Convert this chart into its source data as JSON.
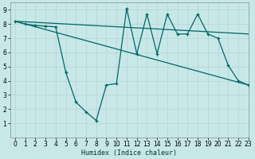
{
  "xlabel": "Humidex (Indice chaleur)",
  "background_color": "#c8e8e8",
  "grid_color": "#b8d8d8",
  "line_color": "#006666",
  "xlim": [
    -0.5,
    23
  ],
  "ylim": [
    0,
    9.5
  ],
  "xticks": [
    0,
    1,
    2,
    3,
    4,
    5,
    6,
    7,
    8,
    9,
    10,
    11,
    12,
    13,
    14,
    15,
    16,
    17,
    18,
    19,
    20,
    21,
    22,
    23
  ],
  "yticks": [
    1,
    2,
    3,
    4,
    5,
    6,
    7,
    8,
    9
  ],
  "series1_x": [
    0,
    1,
    2,
    3,
    4,
    5,
    6,
    7,
    8,
    9,
    10,
    11,
    12,
    13,
    14,
    15,
    16,
    17,
    18,
    19,
    20,
    21,
    22,
    23
  ],
  "series1_y": [
    8.2,
    8.0,
    7.9,
    7.85,
    7.8,
    4.6,
    2.5,
    1.8,
    1.2,
    3.7,
    3.8,
    9.1,
    5.9,
    8.7,
    5.9,
    8.7,
    7.3,
    7.3,
    8.7,
    7.3,
    7.0,
    5.1,
    4.0,
    3.7
  ],
  "series2_x": [
    0,
    23
  ],
  "series2_y": [
    8.2,
    7.3
  ],
  "series3_x": [
    0,
    23
  ],
  "series3_y": [
    8.2,
    3.7
  ],
  "xlabel_fontsize": 6.0,
  "tick_fontsize": 5.5,
  "linewidth": 0.9,
  "marker_size": 3.0
}
